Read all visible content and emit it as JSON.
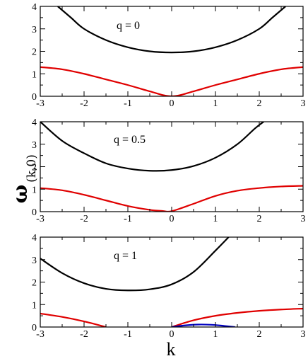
{
  "chart_data": [
    {
      "type": "line",
      "annotation": "q = 0",
      "xlim": [
        -3,
        3
      ],
      "ylim": [
        0,
        4
      ],
      "xticks": [
        "-3",
        "-2",
        "-1",
        "0",
        "1",
        "2",
        "3"
      ],
      "yticks": [
        "0",
        "1",
        "2",
        "3",
        "4"
      ],
      "series": [
        {
          "color": "#000000",
          "x": [
            -2.6,
            -2.3,
            -2.0,
            -1.5,
            -1.0,
            -0.5,
            0.0,
            0.5,
            1.0,
            1.5,
            2.0,
            2.3,
            2.6
          ],
          "y": [
            4.0,
            3.5,
            3.0,
            2.5,
            2.18,
            2.0,
            1.95,
            2.0,
            2.18,
            2.5,
            3.0,
            3.5,
            4.0
          ]
        },
        {
          "color": "#e00000",
          "x": [
            -3.0,
            -2.5,
            -2.0,
            -1.5,
            -1.0,
            -0.5,
            0.0,
            0.5,
            1.0,
            1.5,
            2.0,
            2.5,
            3.0
          ],
          "y": [
            1.3,
            1.2,
            1.0,
            0.75,
            0.5,
            0.22,
            0.0,
            0.22,
            0.5,
            0.75,
            1.0,
            1.2,
            1.3
          ]
        }
      ]
    },
    {
      "type": "line",
      "annotation": "q = 0.5",
      "xlim": [
        -3,
        3
      ],
      "ylim": [
        0,
        4
      ],
      "xticks": [
        "-3",
        "-2",
        "-1",
        "0",
        "1",
        "2",
        "3"
      ],
      "yticks": [
        "0",
        "1",
        "2",
        "3",
        "4"
      ],
      "series": [
        {
          "color": "#000000",
          "x": [
            -3.0,
            -2.5,
            -2.0,
            -1.5,
            -1.0,
            -0.5,
            0.0,
            0.5,
            1.0,
            1.5,
            1.9,
            2.1
          ],
          "y": [
            4.0,
            3.15,
            2.6,
            2.15,
            1.92,
            1.82,
            1.85,
            2.03,
            2.4,
            3.0,
            3.7,
            4.0
          ]
        },
        {
          "color": "#e00000",
          "x": [
            -3.0,
            -2.5,
            -2.0,
            -1.5,
            -1.0,
            -0.5,
            -0.2,
            0.0,
            0.5,
            1.0,
            1.5,
            2.0,
            2.5,
            3.0
          ],
          "y": [
            1.05,
            0.95,
            0.75,
            0.5,
            0.25,
            0.08,
            0.03,
            0.02,
            0.35,
            0.7,
            0.93,
            1.05,
            1.12,
            1.15
          ]
        }
      ]
    },
    {
      "type": "line",
      "annotation": "q = 1",
      "xlim": [
        -3,
        3
      ],
      "ylim": [
        0,
        4
      ],
      "xticks": [
        "-3",
        "-2",
        "-1",
        "0",
        "1",
        "2",
        "3"
      ],
      "yticks": [
        "0",
        "1",
        "2",
        "3",
        "4"
      ],
      "series": [
        {
          "color": "#000000",
          "x": [
            -3.0,
            -2.5,
            -2.0,
            -1.5,
            -1.0,
            -0.5,
            0.0,
            0.5,
            1.0,
            1.3
          ],
          "y": [
            3.05,
            2.4,
            1.95,
            1.7,
            1.63,
            1.68,
            1.9,
            2.45,
            3.4,
            4.0
          ]
        },
        {
          "color": "#e00000",
          "x": [
            -3.0,
            -2.5,
            -2.0,
            -1.5
          ],
          "y": [
            0.6,
            0.45,
            0.25,
            0.0
          ]
        },
        {
          "color": "#e00000",
          "x": [
            0.0,
            0.5,
            1.0,
            1.5,
            2.0,
            2.5,
            3.0
          ],
          "y": [
            0.0,
            0.3,
            0.5,
            0.63,
            0.72,
            0.78,
            0.82
          ]
        },
        {
          "color": "#0000c0",
          "x": [
            0.0,
            0.3,
            0.6,
            0.9,
            1.2,
            1.45
          ],
          "y": [
            0.0,
            0.07,
            0.11,
            0.1,
            0.05,
            0.0
          ]
        }
      ]
    }
  ],
  "labels": {
    "xlabel": "k",
    "ylabel_main": "ω",
    "ylabel_sub": "(k,0)"
  }
}
